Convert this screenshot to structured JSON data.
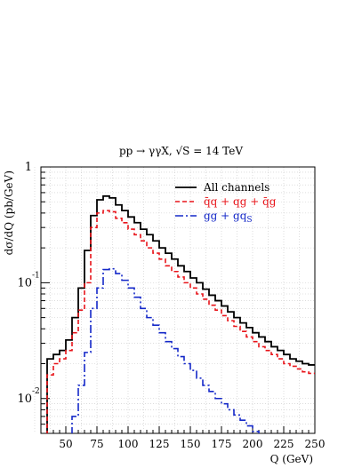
{
  "chart_data": {
    "type": "line",
    "title": "pp → γγX, √S = 14 TeV",
    "xlabel": "Q (GeV)",
    "ylabel": "dσ/dQ (pb/GeV)",
    "xlim": [
      30,
      250
    ],
    "ylim": [
      0.005,
      1
    ],
    "yscale": "log",
    "grid": true,
    "legend_position": "top-right",
    "x_ticks": [
      50,
      75,
      100,
      125,
      150,
      175,
      200,
      225,
      250
    ],
    "x_tick_labels": [
      "50",
      "75",
      "100",
      "125",
      "150",
      "175",
      "200",
      "225",
      "250"
    ],
    "y_ticks": [
      1,
      0.1,
      0.01
    ],
    "y_tick_labels": [
      {
        "base": "1",
        "exp": ""
      },
      {
        "base": "10",
        "exp": "-1"
      },
      {
        "base": "10",
        "exp": "-2"
      }
    ],
    "bin_edges": [
      35,
      40,
      45,
      50,
      55,
      60,
      65,
      70,
      75,
      80,
      85,
      90,
      95,
      100,
      105,
      110,
      115,
      120,
      125,
      130,
      135,
      140,
      145,
      150,
      155,
      160,
      165,
      170,
      175,
      180,
      185,
      190,
      195,
      200,
      205,
      210,
      215,
      220,
      225,
      230,
      235,
      240,
      245,
      250
    ],
    "series": [
      {
        "name": "All channels",
        "color": "#000000",
        "dash": "solid",
        "values": [
          0.022,
          0.024,
          0.026,
          0.032,
          0.05,
          0.09,
          0.19,
          0.38,
          0.52,
          0.56,
          0.54,
          0.47,
          0.42,
          0.37,
          0.33,
          0.29,
          0.26,
          0.23,
          0.2,
          0.18,
          0.16,
          0.14,
          0.125,
          0.11,
          0.1,
          0.088,
          0.078,
          0.07,
          0.063,
          0.056,
          0.05,
          0.045,
          0.041,
          0.037,
          0.034,
          0.031,
          0.028,
          0.026,
          0.024,
          0.022,
          0.021,
          0.02,
          0.0195
        ]
      },
      {
        "name": "q̄q + qg + q̄g",
        "color": "#e8141a",
        "dash": "dashed",
        "values": [
          0.016,
          0.02,
          0.022,
          0.026,
          0.037,
          0.058,
          0.1,
          0.3,
          0.4,
          0.42,
          0.41,
          0.36,
          0.33,
          0.29,
          0.26,
          0.23,
          0.2,
          0.18,
          0.16,
          0.14,
          0.125,
          0.112,
          0.1,
          0.09,
          0.08,
          0.072,
          0.064,
          0.058,
          0.052,
          0.047,
          0.042,
          0.038,
          0.034,
          0.031,
          0.028,
          0.026,
          0.024,
          0.022,
          0.02,
          0.019,
          0.018,
          0.017,
          0.0165
        ]
      },
      {
        "name": "gg + gq",
        "name_subscript": "S",
        "color": "#1428c8",
        "dash": "dashdot",
        "values": [
          null,
          null,
          null,
          null,
          0.007,
          0.013,
          0.025,
          0.06,
          0.09,
          0.13,
          0.132,
          0.12,
          0.105,
          0.09,
          0.075,
          0.06,
          0.05,
          0.043,
          0.037,
          0.031,
          0.027,
          0.023,
          0.02,
          0.0175,
          0.015,
          0.013,
          0.0115,
          0.01,
          0.009,
          0.008,
          0.0072,
          0.0065,
          0.0058,
          0.0052,
          null,
          null,
          null,
          null,
          null,
          null,
          null,
          null,
          null
        ]
      }
    ]
  }
}
